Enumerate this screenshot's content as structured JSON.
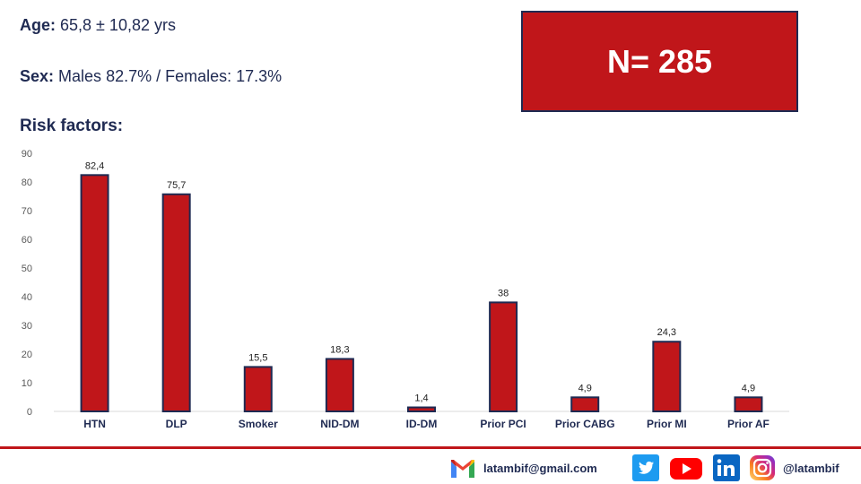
{
  "header": {
    "age_label": "Age:",
    "age_value": "65,8 ± 10,82 yrs",
    "sex_label": "Sex:",
    "sex_value": "Males 82.7% / Females: 17.3%",
    "risk_title": "Risk factors:",
    "n_label": "N= 285"
  },
  "chart_data": {
    "type": "bar",
    "categories": [
      "HTN",
      "DLP",
      "Smoker",
      "NID-DM",
      "ID-DM",
      "Prior PCI",
      "Prior CABG",
      "Prior MI",
      "Prior AF"
    ],
    "values": [
      82.4,
      75.7,
      15.5,
      18.3,
      1.4,
      38,
      4.9,
      24.3,
      4.9
    ],
    "value_labels": [
      "82,4",
      "75,7",
      "15,5",
      "18,3",
      "1,4",
      "38",
      "4,9",
      "24,3",
      "4,9"
    ],
    "ylim": [
      0,
      90
    ],
    "yticks": [
      0,
      10,
      20,
      30,
      40,
      50,
      60,
      70,
      80,
      90
    ],
    "title": "",
    "xlabel": "",
    "ylabel": "",
    "grid": false,
    "bar_color": "#c0161a",
    "bar_border_color": "#1f2a52"
  },
  "footer": {
    "email": "latambif@gmail.com",
    "handle": "@latambif",
    "icons": [
      "gmail-icon",
      "twitter-icon",
      "youtube-icon",
      "linkedin-icon",
      "instagram-icon"
    ],
    "accent_color": "#c0161a"
  }
}
